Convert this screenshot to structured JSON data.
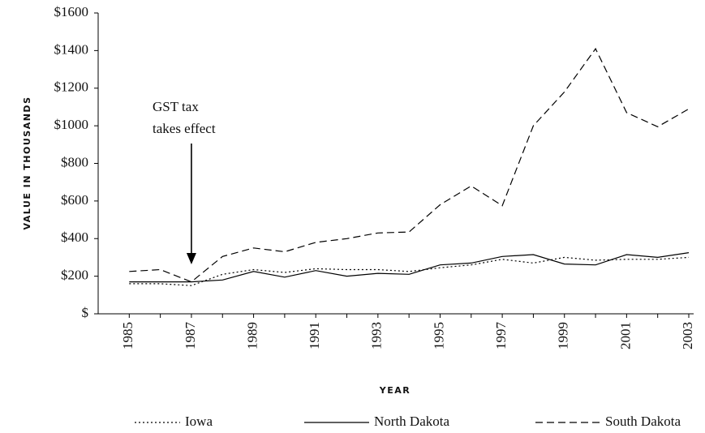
{
  "chart_data": {
    "type": "line",
    "y_label": "VALUE IN THOUSANDS",
    "x_label": "YEAR",
    "annotation": [
      "GST tax",
      "takes effect"
    ],
    "x": [
      1985,
      1986,
      1987,
      1988,
      1989,
      1990,
      1991,
      1992,
      1993,
      1994,
      1995,
      1996,
      1997,
      1998,
      1999,
      2000,
      2001,
      2002,
      2003
    ],
    "xlim": [
      1984,
      2003
    ],
    "xticks": [
      1985,
      1987,
      1989,
      1991,
      1993,
      1995,
      1997,
      1999,
      2001,
      2003
    ],
    "ylim": [
      0,
      1600
    ],
    "yticks": [
      {
        "value": 0,
        "label": "$"
      },
      {
        "value": 200,
        "label": "$200"
      },
      {
        "value": 400,
        "label": "$400"
      },
      {
        "value": 600,
        "label": "$600"
      },
      {
        "value": 800,
        "label": "$800"
      },
      {
        "value": 1000,
        "label": "$1000"
      },
      {
        "value": 1200,
        "label": "$1200"
      },
      {
        "value": 1400,
        "label": "$1400"
      },
      {
        "value": 1600,
        "label": "$1600"
      }
    ],
    "series": [
      {
        "name": "Iowa",
        "color": "#000000",
        "dash": "dotted",
        "values": [
          160,
          160,
          150,
          210,
          235,
          220,
          240,
          235,
          235,
          225,
          245,
          260,
          290,
          270,
          300,
          285,
          290,
          290,
          300
        ]
      },
      {
        "name": "North Dakota",
        "color": "#000000",
        "dash": "solid",
        "values": [
          170,
          170,
          170,
          180,
          225,
          195,
          230,
          200,
          215,
          210,
          260,
          270,
          305,
          315,
          265,
          260,
          315,
          300,
          325
        ]
      },
      {
        "name": "South Dakota",
        "color": "#000000",
        "dash": "dashed",
        "values": [
          225,
          235,
          170,
          305,
          350,
          330,
          380,
          400,
          430,
          435,
          580,
          680,
          575,
          1000,
          1180,
          1410,
          1070,
          995,
          1090
        ]
      }
    ]
  }
}
